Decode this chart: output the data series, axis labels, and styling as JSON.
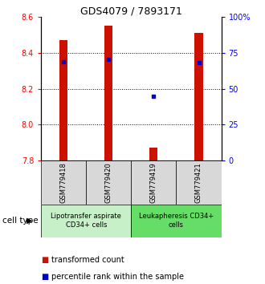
{
  "title": "GDS4079 / 7893171",
  "samples": [
    "GSM779418",
    "GSM779420",
    "GSM779419",
    "GSM779421"
  ],
  "red_values": [
    8.47,
    8.55,
    7.87,
    8.51
  ],
  "blue_values": [
    69.0,
    70.5,
    45.0,
    68.5
  ],
  "ylim_left": [
    7.8,
    8.6
  ],
  "ylim_right": [
    0,
    100
  ],
  "yticks_left": [
    7.8,
    8.0,
    8.2,
    8.4,
    8.6
  ],
  "yticks_right": [
    0,
    25,
    50,
    75,
    100
  ],
  "ytick_right_labels": [
    "0",
    "25",
    "50",
    "75",
    "100%"
  ],
  "grid_lines": [
    8.0,
    8.2,
    8.4
  ],
  "groups": [
    {
      "label": "Lipotransfer aspirate\nCD34+ cells",
      "samples": [
        0,
        1
      ],
      "color": "#c8f0c8"
    },
    {
      "label": "Leukapheresis CD34+\ncells",
      "samples": [
        2,
        3
      ],
      "color": "#66dd66"
    }
  ],
  "cell_type_label": "cell type",
  "legend": [
    {
      "color": "#cc1100",
      "label": "transformed count"
    },
    {
      "color": "#0000cc",
      "label": "percentile rank within the sample"
    }
  ],
  "bar_color": "#cc1100",
  "dot_color": "#0000cc",
  "sample_bg_color": "#d8d8d8",
  "title_fontsize": 9,
  "tick_fontsize": 7,
  "sample_fontsize": 6,
  "group_fontsize": 6,
  "legend_fontsize": 7
}
